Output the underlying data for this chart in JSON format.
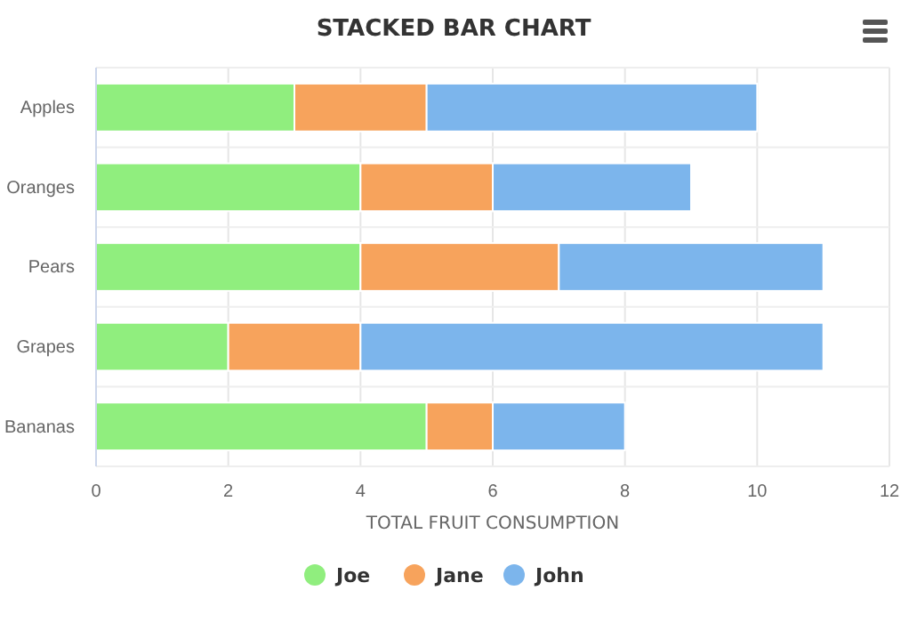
{
  "chart_data": {
    "type": "bar",
    "title": "STACKED BAR CHART",
    "xlabel": "TOTAL FRUIT CONSUMPTION",
    "orientation": "horizontal",
    "stacked": true,
    "categories": [
      "Apples",
      "Oranges",
      "Pears",
      "Grapes",
      "Bananas"
    ],
    "series": [
      {
        "name": "Joe",
        "color": "#90ee7e",
        "values": [
          3,
          4,
          4,
          2,
          5
        ]
      },
      {
        "name": "Jane",
        "color": "#f7a35c",
        "values": [
          2,
          2,
          3,
          2,
          1
        ]
      },
      {
        "name": "John",
        "color": "#7cb5ec",
        "values": [
          5,
          3,
          4,
          7,
          2
        ]
      }
    ],
    "xlim": [
      0,
      12
    ],
    "xticks": [
      0,
      2,
      4,
      6,
      8,
      10,
      12
    ],
    "grid": true,
    "legend": "bottom"
  }
}
